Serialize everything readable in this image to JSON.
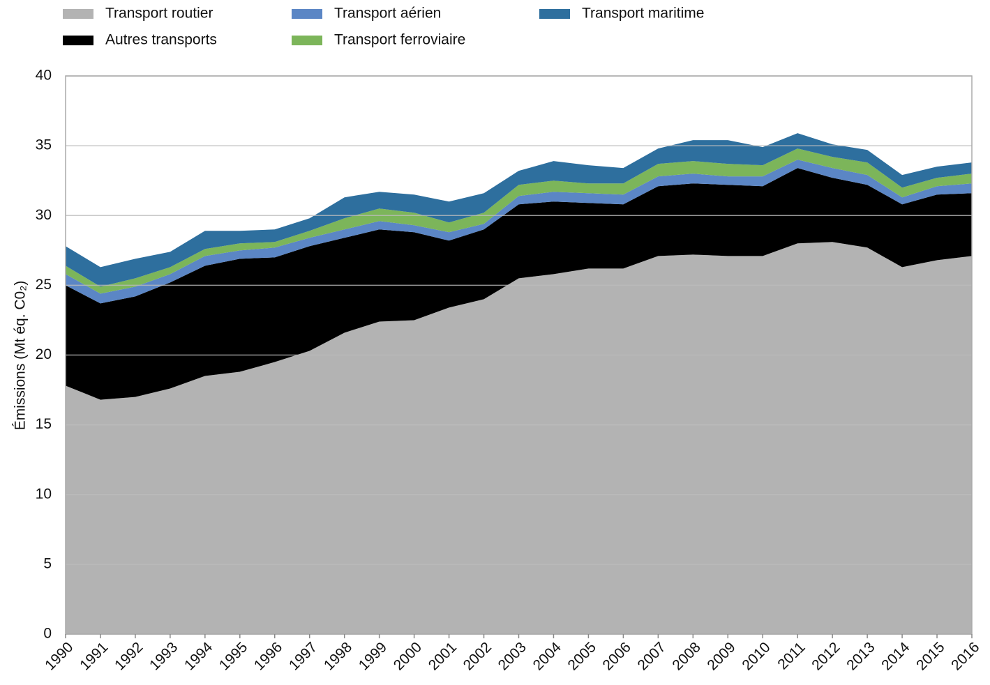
{
  "chart_data": {
    "type": "stacked-area",
    "y_label": "Émissions (Mt éq. C0₂)",
    "categories": [
      "1990",
      "1991",
      "1992",
      "1993",
      "1994",
      "1995",
      "1996",
      "1997",
      "1998",
      "1999",
      "2000",
      "2001",
      "2002",
      "2003",
      "2004",
      "2005",
      "2006",
      "2007",
      "2008",
      "2009",
      "2010",
      "2011",
      "2012",
      "2013",
      "2014",
      "2015",
      "2016"
    ],
    "series": [
      {
        "name": "Transport routier",
        "color": "#b3b3b3",
        "values": [
          17.8,
          16.8,
          17.0,
          17.6,
          18.5,
          18.8,
          19.5,
          20.3,
          21.6,
          22.4,
          22.5,
          23.4,
          24.0,
          25.5,
          25.8,
          26.2,
          26.2,
          27.1,
          27.2,
          27.1,
          27.1,
          28.0,
          28.1,
          27.7,
          26.3,
          26.8,
          27.1
        ]
      },
      {
        "name": "Autres transports",
        "color": "#000000",
        "values": [
          7.2,
          6.9,
          7.2,
          7.6,
          7.9,
          8.1,
          7.5,
          7.5,
          6.8,
          6.6,
          6.3,
          4.8,
          5.0,
          5.3,
          5.2,
          4.7,
          4.6,
          5.0,
          5.1,
          5.1,
          5.0,
          5.4,
          4.6,
          4.5,
          4.5,
          4.7,
          4.5
        ]
      },
      {
        "name": "Transport aérien",
        "color": "#5b86c5",
        "values": [
          0.8,
          0.7,
          0.7,
          0.6,
          0.7,
          0.6,
          0.7,
          0.6,
          0.6,
          0.6,
          0.5,
          0.6,
          0.4,
          0.6,
          0.7,
          0.7,
          0.7,
          0.7,
          0.7,
          0.6,
          0.7,
          0.6,
          0.7,
          0.7,
          0.5,
          0.6,
          0.7
        ]
      },
      {
        "name": "Transport ferroviaire",
        "color": "#7cb55a",
        "values": [
          0.6,
          0.5,
          0.6,
          0.5,
          0.5,
          0.5,
          0.4,
          0.5,
          0.8,
          0.9,
          0.9,
          0.7,
          0.8,
          0.8,
          0.8,
          0.7,
          0.8,
          0.9,
          0.9,
          0.9,
          0.8,
          0.8,
          0.8,
          0.9,
          0.7,
          0.6,
          0.7
        ]
      },
      {
        "name": "Transport maritime",
        "color": "#2e6f9e",
        "values": [
          1.4,
          1.4,
          1.4,
          1.1,
          1.3,
          0.9,
          0.9,
          0.9,
          1.5,
          1.2,
          1.3,
          1.5,
          1.4,
          1.0,
          1.4,
          1.3,
          1.1,
          1.1,
          1.5,
          1.7,
          1.3,
          1.1,
          0.9,
          0.9,
          0.9,
          0.8,
          0.8
        ]
      }
    ],
    "ylim": [
      0,
      40
    ],
    "yticks": [
      0,
      5,
      10,
      15,
      20,
      25,
      30,
      35,
      40
    ],
    "grid": true
  }
}
